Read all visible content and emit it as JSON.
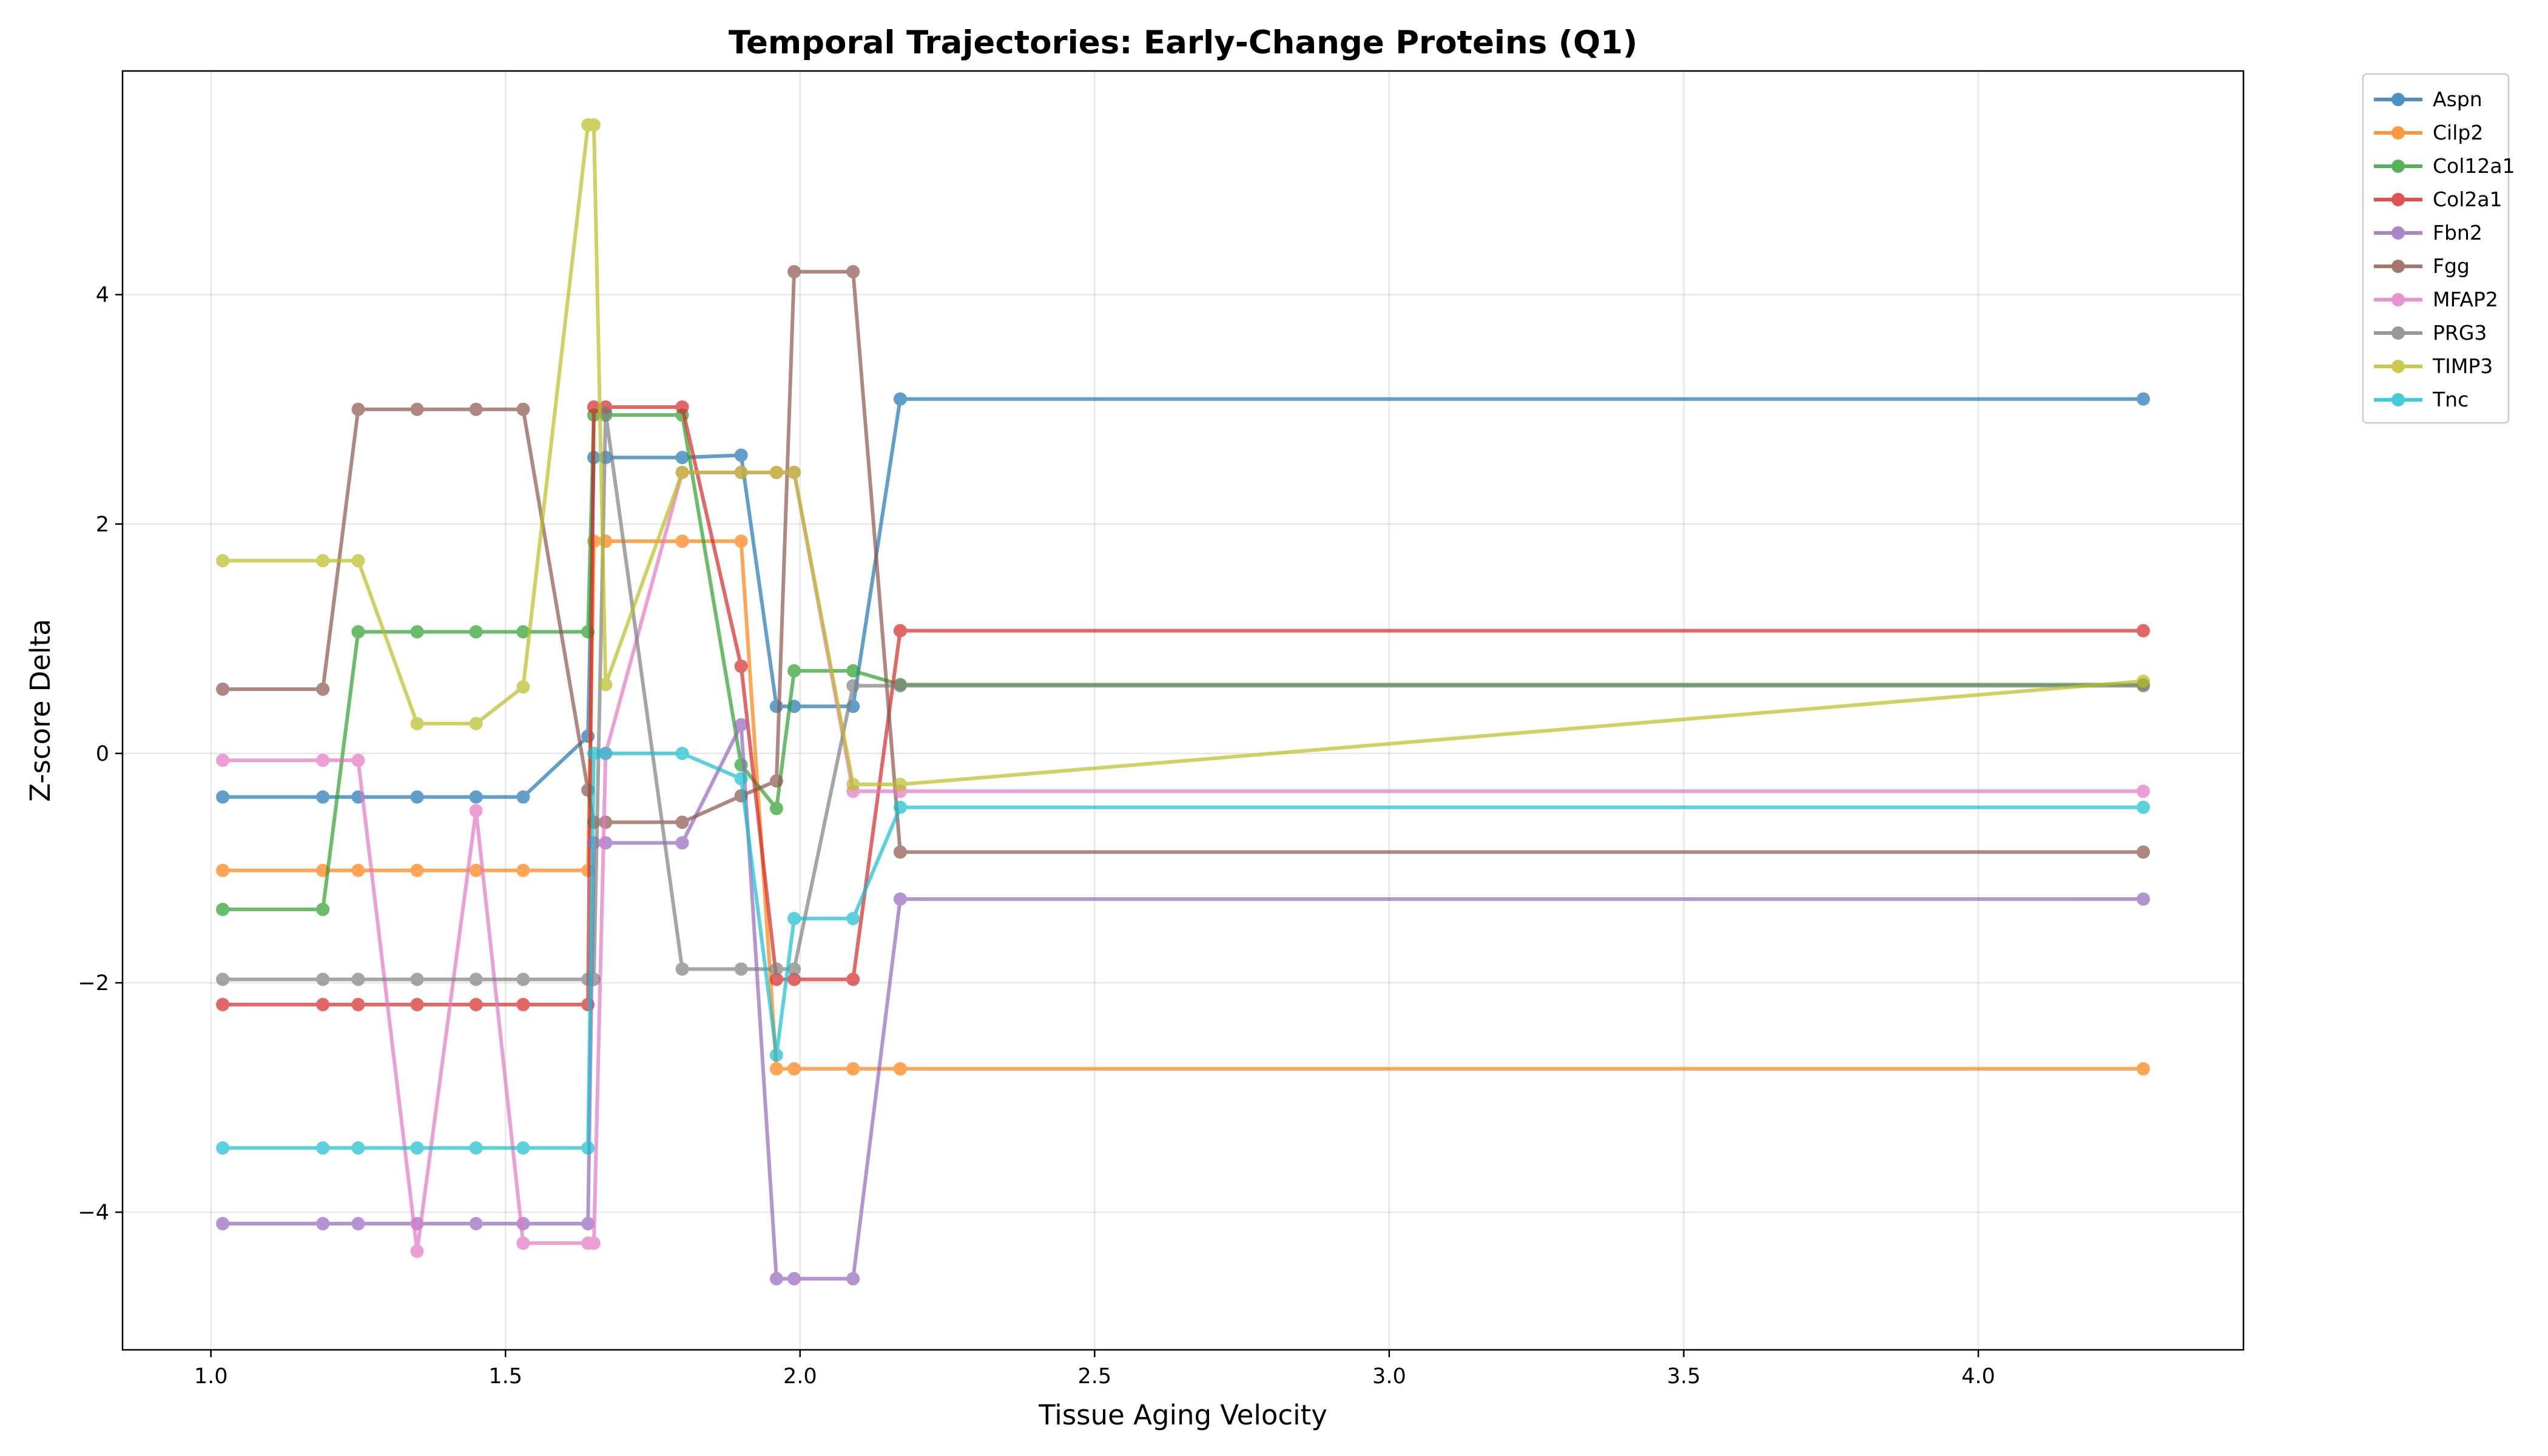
{
  "chart_data": {
    "type": "line",
    "title": "Temporal Trajectories: Early-Change Proteins (Q1)",
    "xlabel": "Tissue Aging Velocity",
    "ylabel": "Z-score Delta",
    "xlim": [
      0.85,
      4.45
    ],
    "ylim": [
      -5.2,
      5.95
    ],
    "xticks": [
      1.0,
      1.5,
      2.0,
      2.5,
      3.0,
      3.5,
      4.0
    ],
    "xtick_labels": [
      "1.0",
      "1.5",
      "2.0",
      "2.5",
      "3.0",
      "3.5",
      "4.0"
    ],
    "yticks": [
      -4,
      -2,
      0,
      2,
      4
    ],
    "ytick_labels": [
      "−4",
      "−2",
      "0",
      "2",
      "4"
    ],
    "grid": true,
    "legend_position": "outside-top-right",
    "x": [
      1.02,
      1.19,
      1.25,
      1.35,
      1.45,
      1.53,
      1.64,
      1.65,
      1.67,
      1.8,
      1.9,
      1.96,
      1.99,
      2.09,
      2.17,
      4.28
    ],
    "series": [
      {
        "name": "Aspn",
        "color": "#1f77b4",
        "values": [
          -0.38,
          -0.38,
          -0.38,
          -0.38,
          -0.38,
          -0.38,
          0.15,
          2.58,
          2.58,
          2.58,
          2.6,
          0.41,
          0.41,
          0.41,
          3.09,
          3.09
        ]
      },
      {
        "name": "Cilp2",
        "color": "#ff7f0e",
        "values": [
          -1.02,
          -1.02,
          -1.02,
          -1.02,
          -1.02,
          -1.02,
          -1.02,
          1.85,
          1.85,
          1.85,
          1.85,
          -2.75,
          -2.75,
          -2.75,
          -2.75,
          -2.75
        ]
      },
      {
        "name": "Col12a1",
        "color": "#2ca02c",
        "values": [
          -1.36,
          -1.36,
          1.06,
          1.06,
          1.06,
          1.06,
          1.06,
          2.95,
          2.95,
          2.95,
          -0.1,
          -0.48,
          0.72,
          0.72,
          0.6,
          0.6
        ]
      },
      {
        "name": "Col2a1",
        "color": "#d62728",
        "values": [
          -2.19,
          -2.19,
          -2.19,
          -2.19,
          -2.19,
          -2.19,
          -2.19,
          3.02,
          3.02,
          3.02,
          0.76,
          -1.97,
          -1.97,
          -1.97,
          1.07,
          1.07
        ]
      },
      {
        "name": "Fbn2",
        "color": "#9467bd",
        "values": [
          -4.1,
          -4.1,
          -4.1,
          -4.1,
          -4.1,
          -4.1,
          -4.1,
          -0.78,
          -0.78,
          -0.78,
          0.25,
          -4.58,
          -4.58,
          -4.58,
          -1.27,
          -1.27
        ]
      },
      {
        "name": "Fgg",
        "color": "#8c564b",
        "values": [
          0.56,
          0.56,
          3.0,
          3.0,
          3.0,
          3.0,
          -0.32,
          -0.6,
          -0.6,
          -0.6,
          -0.37,
          -0.24,
          4.2,
          4.2,
          -0.86,
          -0.86
        ]
      },
      {
        "name": "MFAP2",
        "color": "#e377c2",
        "values": [
          -0.06,
          -0.06,
          -0.06,
          -4.34,
          -0.5,
          -4.27,
          -4.27,
          -4.27,
          0.0,
          2.45,
          2.45,
          2.45,
          2.45,
          -0.33,
          -0.33,
          -0.33
        ]
      },
      {
        "name": "PRG3",
        "color": "#7f7f7f",
        "values": [
          -1.97,
          -1.97,
          -1.97,
          -1.97,
          -1.97,
          -1.97,
          -1.97,
          -1.97,
          2.97,
          -1.88,
          -1.88,
          -1.88,
          -1.88,
          0.59,
          0.59,
          0.59
        ]
      },
      {
        "name": "TIMP3",
        "color": "#bcbd22",
        "values": [
          1.68,
          1.68,
          1.68,
          0.26,
          0.26,
          0.58,
          5.48,
          5.48,
          0.6,
          2.45,
          2.45,
          2.45,
          2.45,
          -0.27,
          -0.27,
          0.63
        ]
      },
      {
        "name": "Tnc",
        "color": "#17becf",
        "values": [
          -3.44,
          -3.44,
          -3.44,
          -3.44,
          -3.44,
          -3.44,
          -3.44,
          0.0,
          0.0,
          0.0,
          -0.22,
          -2.63,
          -1.44,
          -1.44,
          -0.47,
          -0.47
        ]
      }
    ]
  }
}
